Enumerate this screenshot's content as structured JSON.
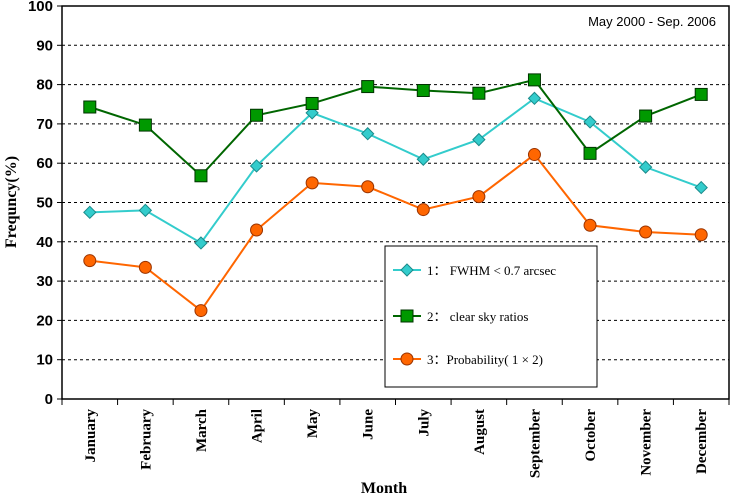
{
  "chart_data": {
    "type": "line",
    "annotation": "May 2000 - Sep. 2006",
    "xlabel": "Month",
    "ylabel": "Frequncy(%)",
    "ylim": [
      0,
      100
    ],
    "yticks": [
      "0",
      "10",
      "20",
      "30",
      "40",
      "50",
      "60",
      "70",
      "80",
      "90",
      "100"
    ],
    "grid": "horizontal dashed",
    "legend_position": "lower-right inside plot",
    "categories": [
      "January",
      "February",
      "March",
      "April",
      "May",
      "June",
      "July",
      "August",
      "September",
      "October",
      "November",
      "December"
    ],
    "series": [
      {
        "name": "1：  FWHM < 0.7 arcsec",
        "marker": "diamond",
        "color": "#33CCCC",
        "values": [
          47.5,
          48,
          39.7,
          59.3,
          72.8,
          67.5,
          61,
          66,
          76.5,
          70.5,
          59,
          53.8
        ]
      },
      {
        "name": "2：  clear sky ratios",
        "marker": "square",
        "color": "#006600",
        "marker_fill": "#009900",
        "values": [
          74.3,
          69.7,
          56.8,
          72.2,
          75.2,
          79.5,
          78.5,
          77.8,
          81.2,
          62.5,
          72,
          77.5
        ]
      },
      {
        "name": "3：Probability( 1 × 2)",
        "marker": "circle",
        "color": "#FF6600",
        "values": [
          35.2,
          33.5,
          22.5,
          43,
          55,
          54,
          48.2,
          51.5,
          62.2,
          44.2,
          42.5,
          41.8
        ]
      }
    ]
  }
}
